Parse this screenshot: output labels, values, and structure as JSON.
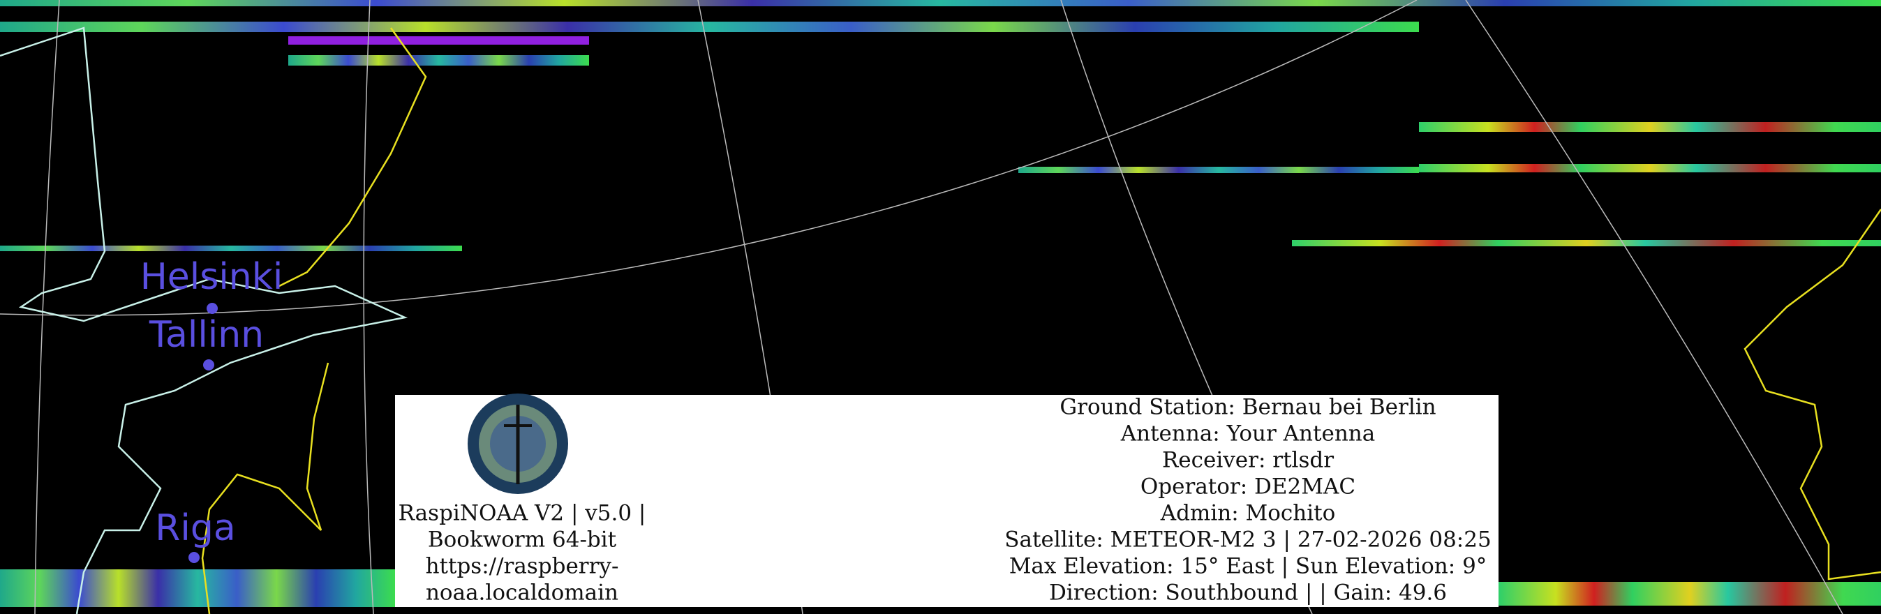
{
  "cities": [
    {
      "label": "Helsinki"
    },
    {
      "label": "Tallinn"
    },
    {
      "label": "Riga"
    }
  ],
  "info": {
    "left_lines": [
      "RaspiNOAA V2 | v5.0 |",
      "Bookworm 64-bit",
      "https://raspberry-",
      "noaa.localdomain"
    ],
    "right_lines": [
      "Ground Station: Bernau bei Berlin",
      "Antenna: Your Antenna",
      "Receiver: rtlsdr",
      "Operator: DE2MAC",
      "Admin: Mochito",
      "Satellite: METEOR-M2 3 | 27-02-2026 08:25",
      "Max Elevation: 15° East | Sun Elevation: 9°",
      "Direction: Southbound | | Gain: 49.6"
    ]
  }
}
